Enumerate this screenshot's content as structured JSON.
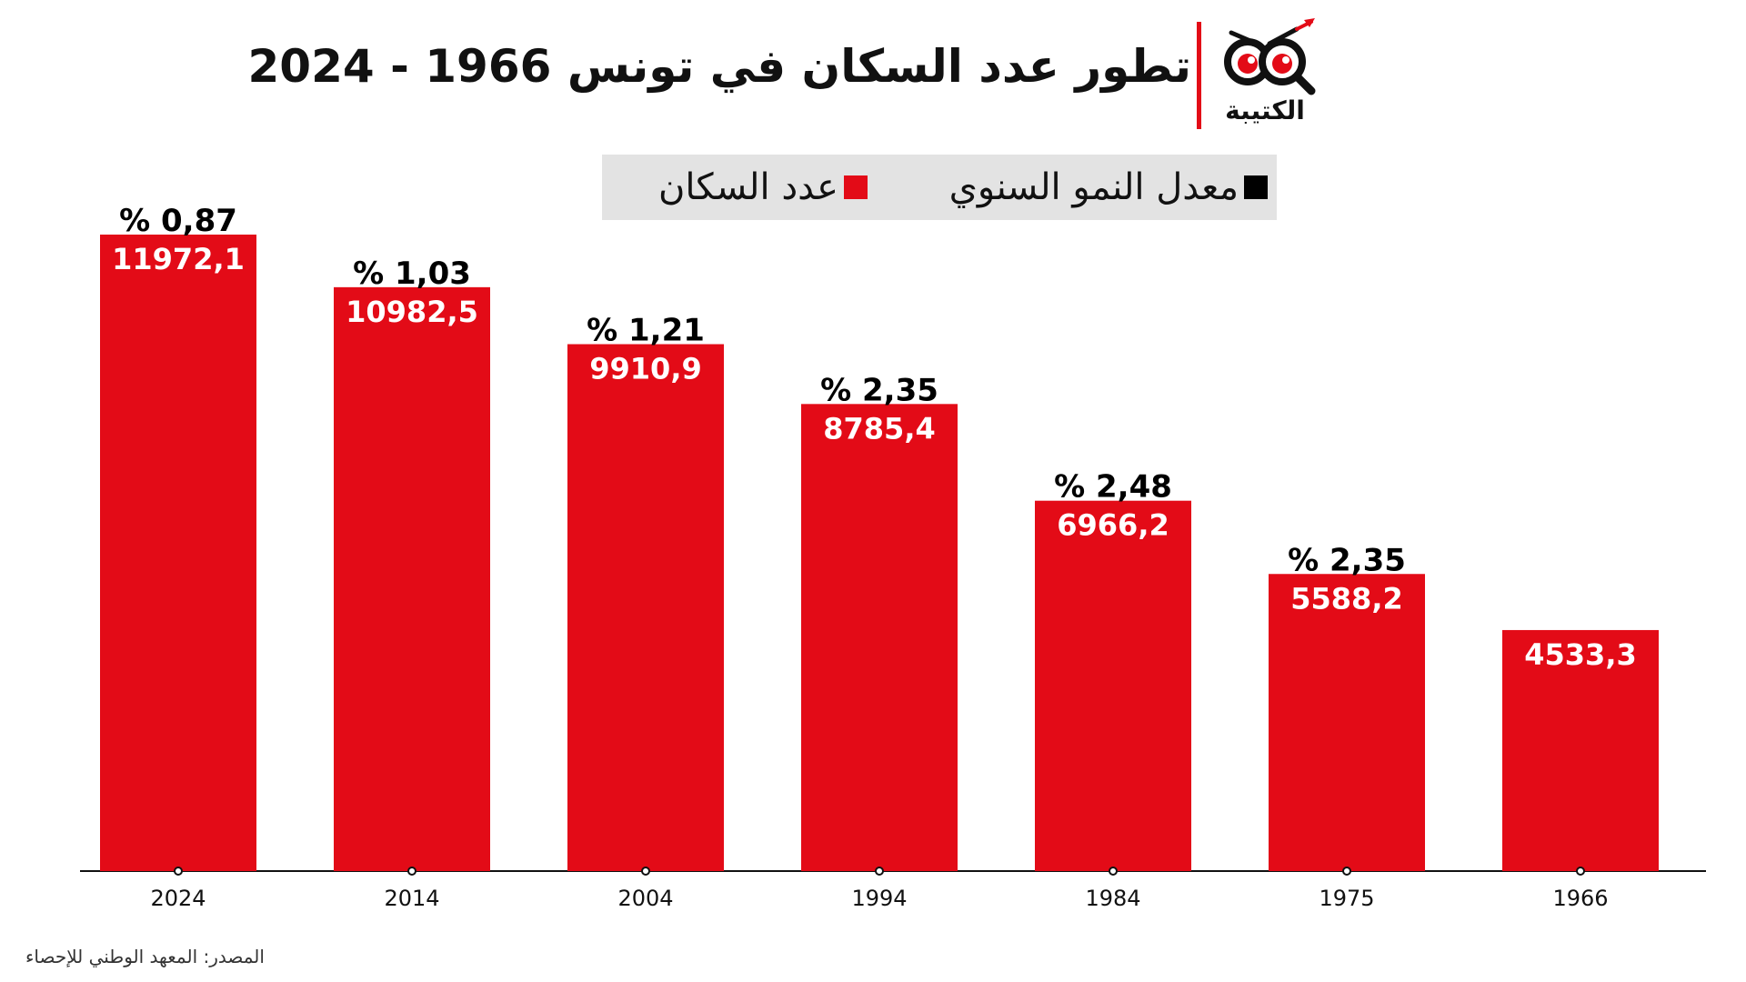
{
  "header": {
    "title": "تطور عدد السكان في تونس 1966 - 2024",
    "logo_text": "الكتيبة"
  },
  "legend": {
    "growth_label": "معدل النمو السنوي",
    "population_label": "عدد السكان"
  },
  "colors": {
    "bar": "#e30b17",
    "growth": "#000000",
    "legend_bg": "#e3e3e3"
  },
  "chart_data": {
    "type": "bar",
    "categories": [
      "2024",
      "2014",
      "2004",
      "1994",
      "1984",
      "1975",
      "1966"
    ],
    "series": [
      {
        "name": "عدد السكان",
        "values": [
          11972.1,
          10982.5,
          9910.9,
          8785.4,
          6966.2,
          5588.2,
          4533.3
        ],
        "labels": [
          "11972,1",
          "10982,5",
          "9910,9",
          "8785,4",
          "6966,2",
          "5588,2",
          "4533,3"
        ]
      },
      {
        "name": "معدل النمو السنوي",
        "values": [
          0.87,
          1.03,
          1.21,
          2.35,
          2.48,
          2.35,
          null
        ],
        "labels": [
          "% 0,87",
          "% 1,03",
          "% 1,21",
          "% 2,35",
          "% 2,48",
          "% 2,35",
          ""
        ]
      }
    ],
    "ylim": [
      0,
      11972.1
    ],
    "grid": false,
    "legend": "top-center"
  },
  "source": "المصدر: المعهد الوطني للإحصاء"
}
